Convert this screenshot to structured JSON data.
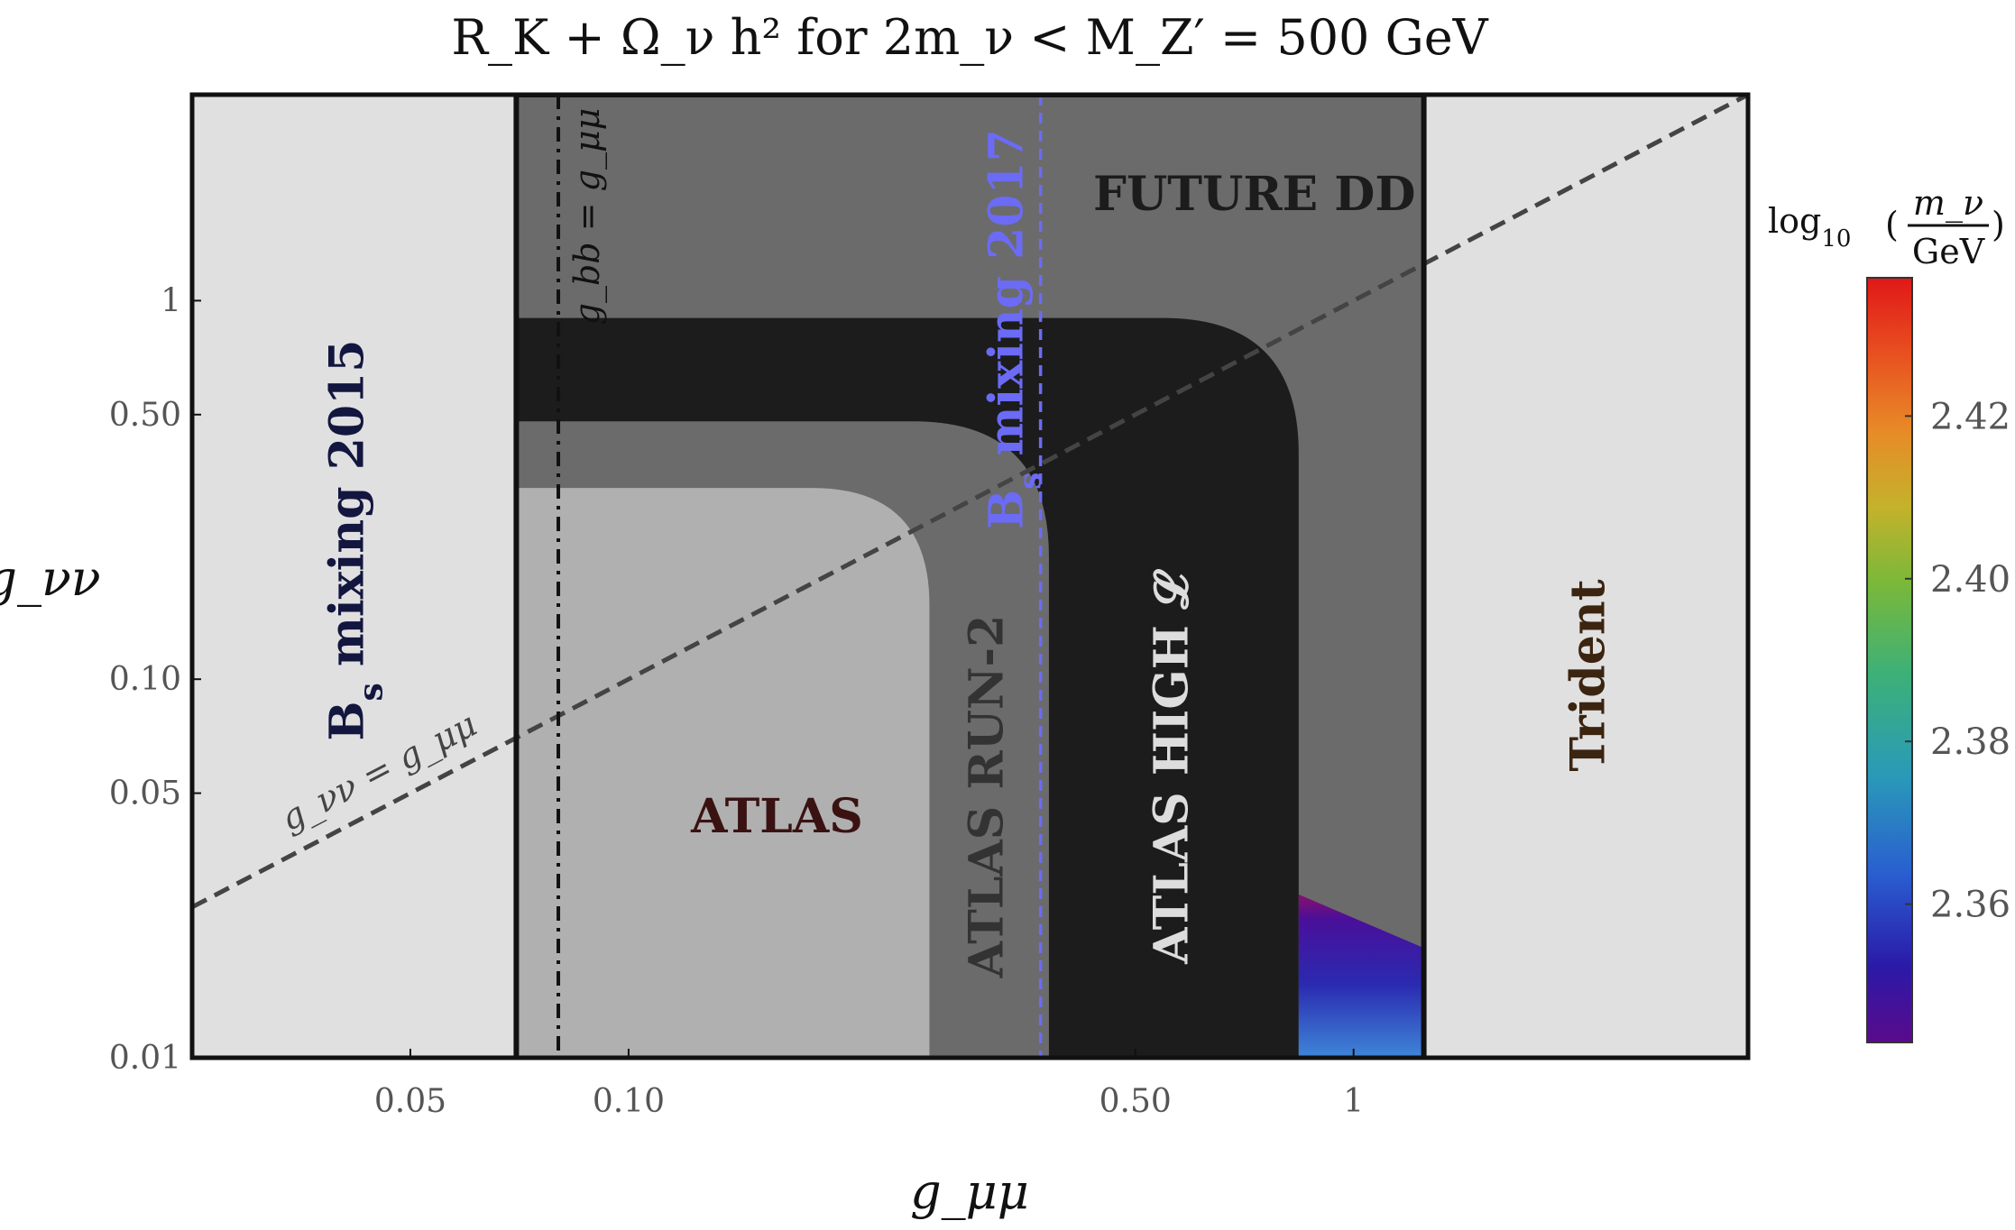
{
  "chart_data": {
    "type": "heatmap",
    "title": "R_K + Ω_ν h² for 2m_ν < M_Z′ = 500 GeV",
    "xlabel": "g_μμ",
    "ylabel": "g_νν",
    "x_scale": "log",
    "y_scale": "log",
    "xlim": [
      0.025,
      3.5
    ],
    "ylim": [
      0.01,
      3.5
    ],
    "x_ticks": [
      {
        "value": 0.05,
        "label": "0.05"
      },
      {
        "value": 0.1,
        "label": "0.10"
      },
      {
        "value": 0.5,
        "label": "0.50"
      },
      {
        "value": 1,
        "label": "1"
      }
    ],
    "y_ticks": [
      {
        "value": 0.01,
        "label": "0.01"
      },
      {
        "value": 0.05,
        "label": "0.05"
      },
      {
        "value": 0.1,
        "label": "0.10"
      },
      {
        "value": 0.5,
        "label": "0.50"
      },
      {
        "value": 1,
        "label": "1"
      }
    ],
    "regions": [
      {
        "name": "B_s mixing 2015",
        "label_main": "B",
        "label_sub": "s",
        "label_rest": " mixing 2015",
        "color": "#e0e0e0",
        "text_color": "#13163f",
        "x_range": [
          0.025,
          0.07
        ]
      },
      {
        "name": "Trident",
        "label": "Trident",
        "color": "#e0e0e0",
        "text_color": "#3b2410",
        "x_range": [
          1.25,
          3.5
        ]
      },
      {
        "name": "FUTURE DD",
        "label": "FUTURE DD",
        "color": "#6b6b6b",
        "text_color": "#1c1c1c",
        "x_range": [
          0.07,
          1.25
        ]
      },
      {
        "name": "ATLAS",
        "label": "ATLAS",
        "color": "#b0b0b0",
        "text_color": "#3a1212",
        "corner_x": 0.26,
        "corner_y": 0.32
      },
      {
        "name": "ATLAS RUN-2",
        "label": "ATLAS RUN-2",
        "color": "#6b6b6b",
        "text_color": "#333333",
        "corner_x": 0.38,
        "corner_y": 0.48
      },
      {
        "name": "ATLAS HIGH L",
        "label": "ATLAS HIGH 𝓛",
        "color": "#1c1c1c",
        "text_color": "#dddddd",
        "corner_x": 0.84,
        "corner_y": 0.9
      }
    ],
    "lines": [
      {
        "name": "g_νν = g_μμ",
        "label": "g_νν = g_μμ",
        "style": "dashed",
        "color": "#444444",
        "relation": "y = x"
      },
      {
        "name": "g_bb = g_μμ",
        "label": "g_bb = g_μμ",
        "style": "dash-dot",
        "color": "#111111",
        "x_value": 0.08
      },
      {
        "name": "B_s mixing 2017",
        "label_main": "B",
        "label_sub": "s",
        "label_rest": " mixing 2017",
        "style": "dashed",
        "color": "#6b6bf5",
        "x_value": 0.37
      }
    ],
    "colorbar": {
      "title_prefix": "log",
      "title_sub": "10",
      "title_num": "m_ν",
      "title_den": "GeV",
      "range": [
        2.343,
        2.437
      ],
      "ticks": [
        "2.36",
        "2.38",
        "2.40",
        "2.42"
      ],
      "tick_values": [
        2.36,
        2.38,
        2.4,
        2.42
      ],
      "colormap": "rainbow"
    },
    "relic_region": {
      "x_range": [
        0.84,
        1.25
      ],
      "y_top_at_xmin": 0.027,
      "y_top_at_xmax": 0.0195,
      "y_bottom": 0.01,
      "min_value": 2.345,
      "max_value": 2.365
    }
  }
}
